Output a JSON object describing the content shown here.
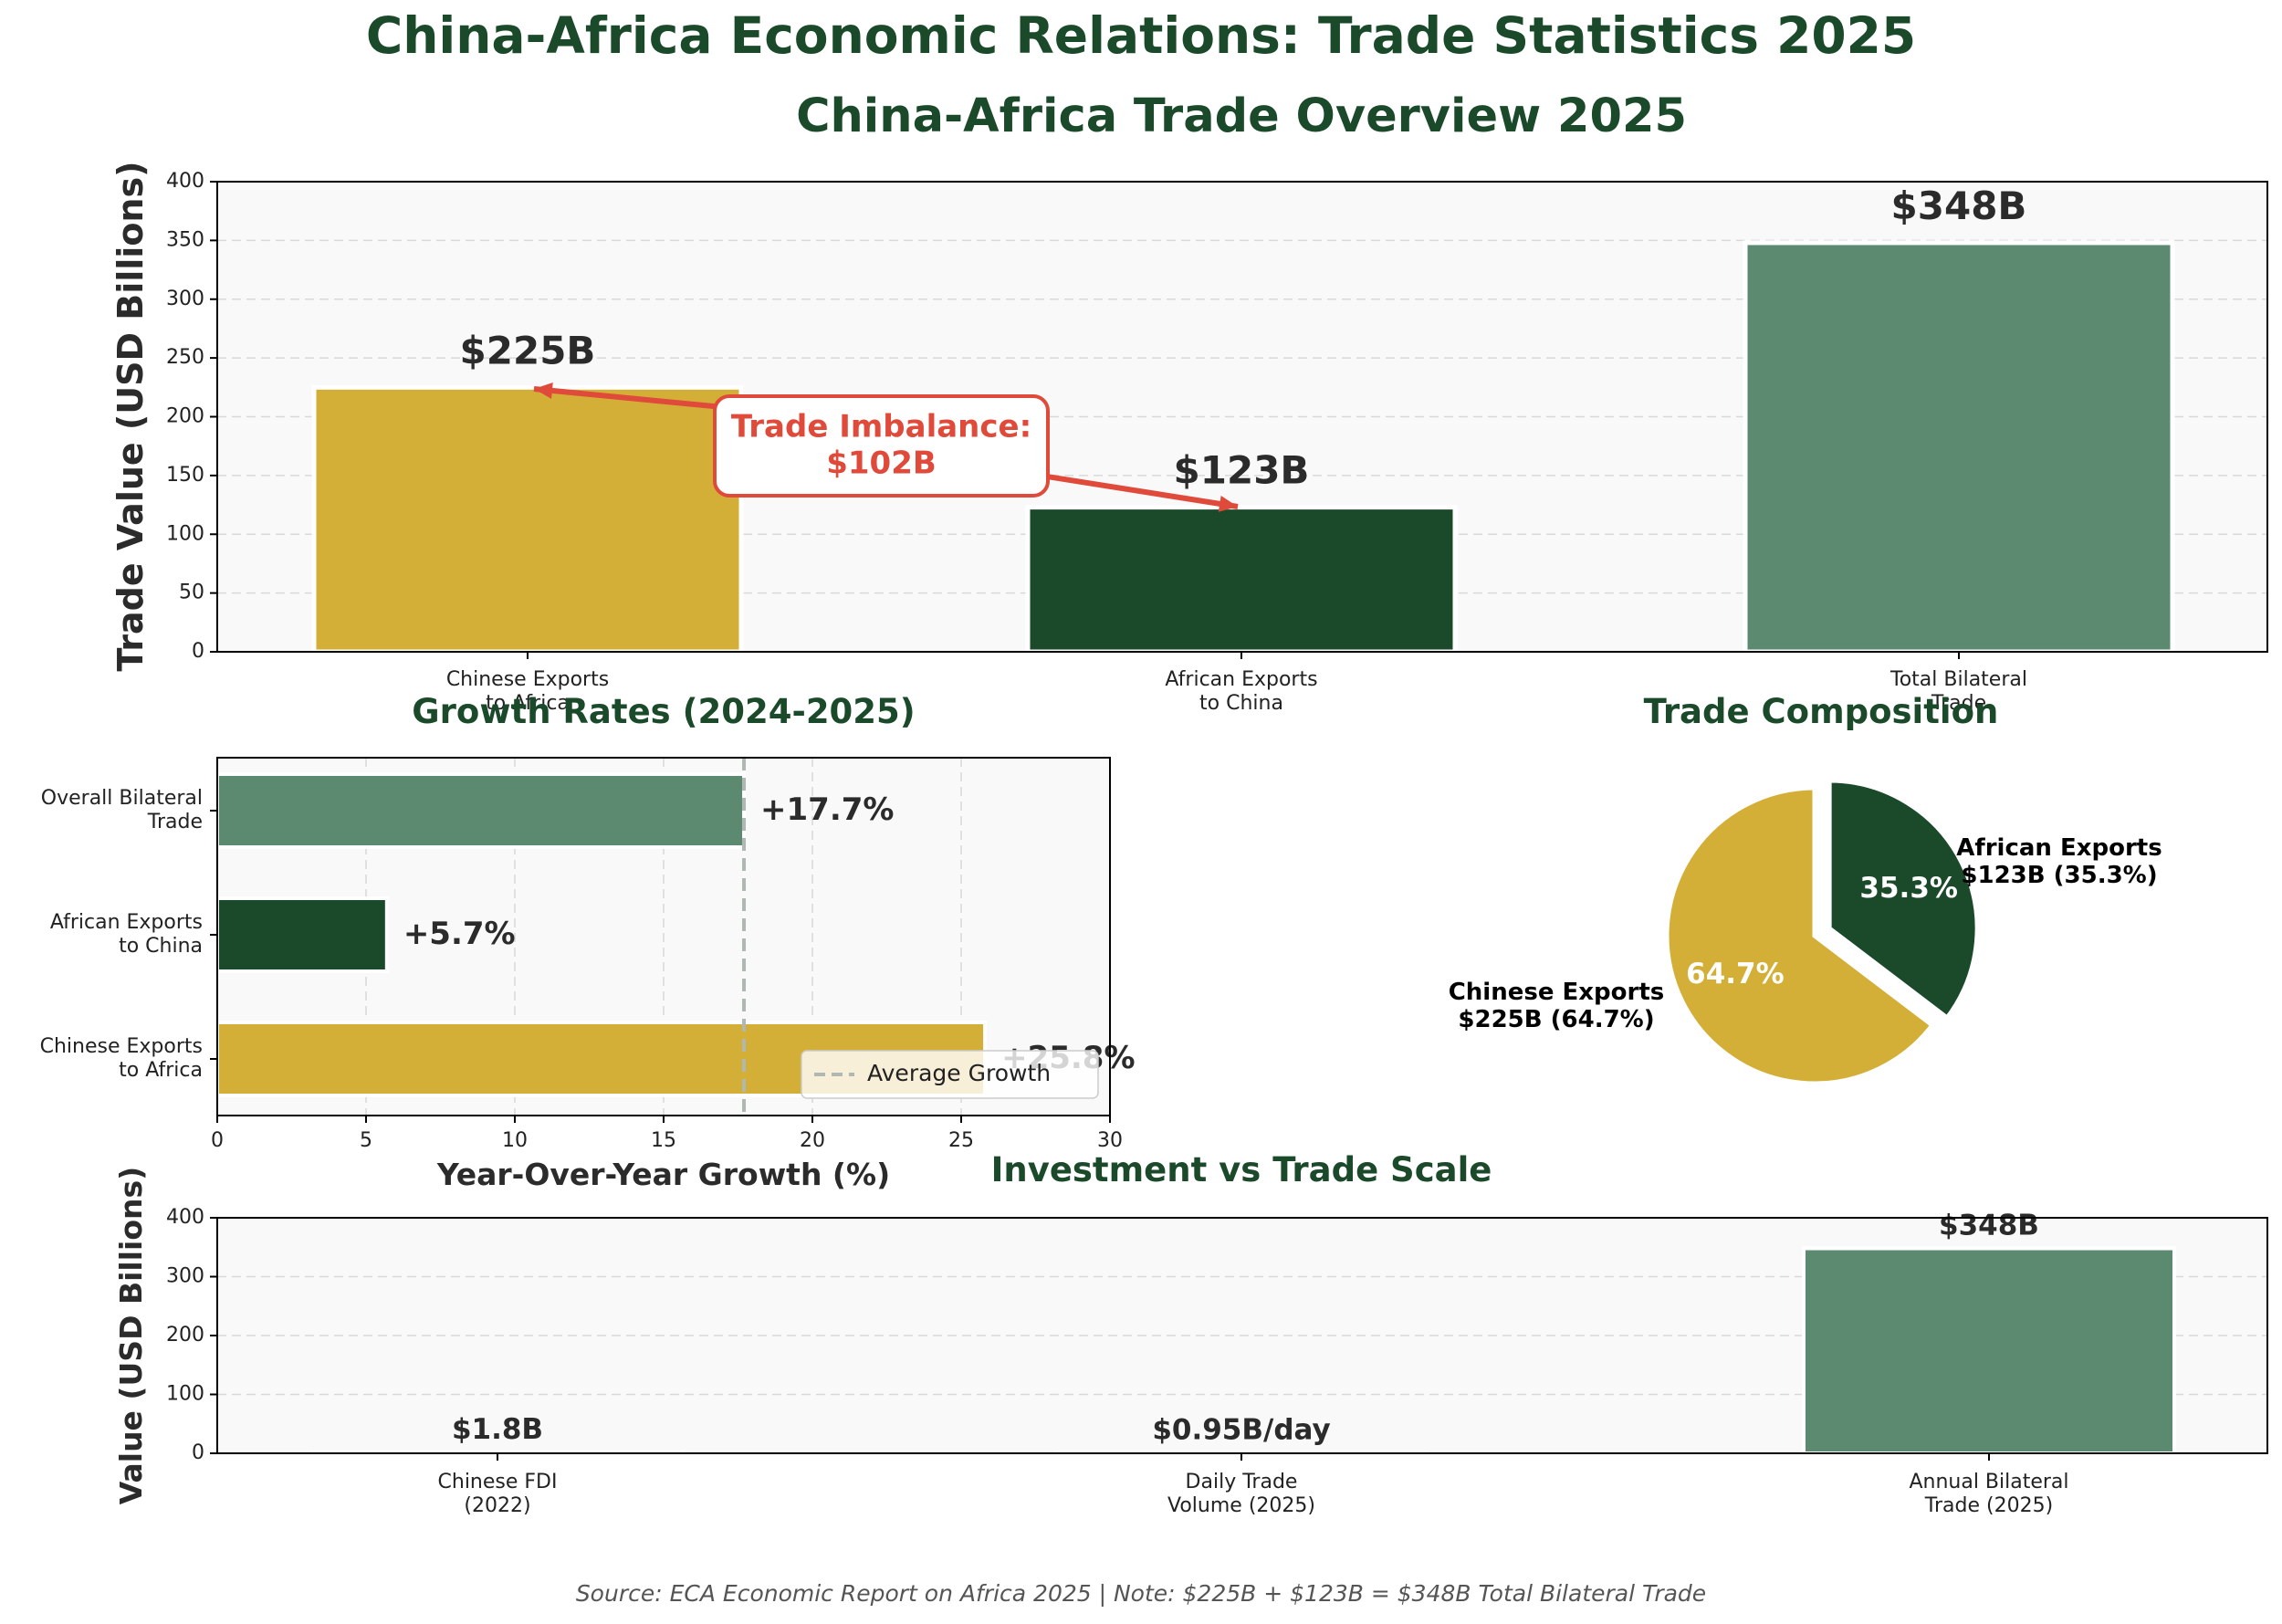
{
  "figure": {
    "suptitle": "China-Africa Economic Relations: Trade Statistics 2025",
    "footer": "Source: ECA Economic Report on Africa 2025 | Note: $225B + $123B = $348B Total Bilateral Trade"
  },
  "colors": {
    "title": "#1b4a2b",
    "gold": "#d4af37",
    "dark_green": "#1b4a2b",
    "sage": "#5b8a70",
    "annotation_red": "#e04a3a",
    "panel_bg": "#f9f9f9",
    "avg_line": "#b0b8b4"
  },
  "chart_data": [
    {
      "type": "bar",
      "title": "China-Africa Trade Overview 2025",
      "xlabel": "",
      "ylabel": "Trade Value (USD Billions)",
      "categories": [
        "Chinese Exports\nto Africa",
        "African Exports\nto China",
        "Total Bilateral\nTrade"
      ],
      "values": [
        225,
        123,
        348
      ],
      "value_labels": [
        "$225B",
        "$123B",
        "$348B"
      ],
      "ylim": [
        0,
        400
      ],
      "yticks": [
        0,
        50,
        100,
        150,
        200,
        250,
        300,
        350,
        400
      ],
      "grid": "y",
      "annotation": "Trade Imbalance:\n$102B"
    },
    {
      "type": "bar",
      "orientation": "horizontal",
      "title": "Growth Rates (2024-2025)",
      "xlabel": "Year-Over-Year Growth (%)",
      "ylabel": "",
      "categories": [
        "Overall Bilateral\nTrade",
        "African Exports\nto China",
        "Chinese Exports\nto Africa"
      ],
      "values": [
        17.7,
        5.7,
        25.8
      ],
      "value_labels": [
        "+17.7%",
        "+5.7%",
        "+25.8%"
      ],
      "xlim": [
        0,
        30
      ],
      "xticks": [
        0,
        5,
        10,
        15,
        20,
        25,
        30
      ],
      "average_line": 17.7,
      "legend": [
        "Average Growth"
      ],
      "legend_position": "lower-right",
      "grid": "x"
    },
    {
      "type": "pie",
      "title": "Trade Composition",
      "slices": [
        {
          "label": "Chinese Exports\n$225B (64.7%)",
          "value": 225,
          "pct_label": "64.7%"
        },
        {
          "label": "African Exports\n$123B (35.3%)",
          "value": 123,
          "pct_label": "35.3%"
        }
      ]
    },
    {
      "type": "bar",
      "title": "Investment vs Trade Scale",
      "xlabel": "",
      "ylabel": "Value (USD Billions)",
      "categories": [
        "Chinese FDI\n(2022)",
        "Daily Trade\nVolume (2025)",
        "Annual Bilateral\nTrade (2025)"
      ],
      "values": [
        1.8,
        0.95,
        348
      ],
      "value_labels": [
        "$1.8B",
        "$0.95B/day",
        "$348B"
      ],
      "ylim": [
        0,
        400
      ],
      "yticks": [
        0,
        100,
        200,
        300,
        400
      ],
      "grid": "y"
    }
  ]
}
